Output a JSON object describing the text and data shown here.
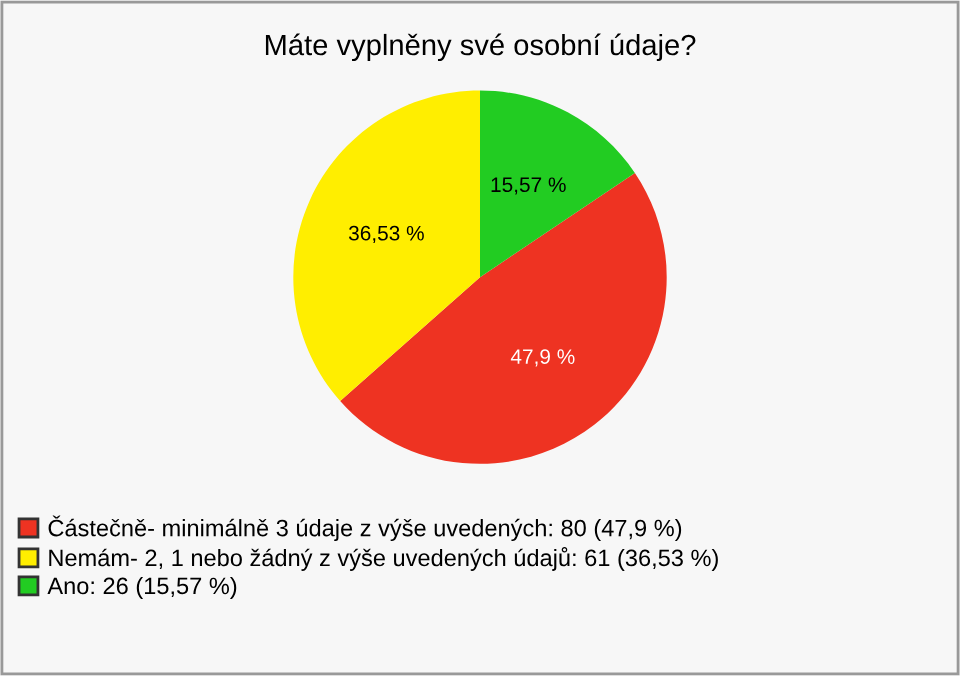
{
  "chart_data": {
    "type": "pie",
    "title": "Máte vyplněny své osobní údaje?",
    "categories": [
      "Částečně- minimálně 3 údaje z výše uvedených: 80 (47,9 %)",
      "Nemám- 2, 1 nebo žádný z výše uvedených údajů: 61 (36,53 %)",
      "Ano: 26 (15,57 %)"
    ],
    "values": [
      47.9,
      36.53,
      15.57
    ],
    "value_labels": [
      "47,9 %",
      "36,53 %",
      "15,57 %"
    ],
    "colors": [
      "#ee3322",
      "#ffee00",
      "#22cc22"
    ],
    "legend": "bottom left"
  }
}
